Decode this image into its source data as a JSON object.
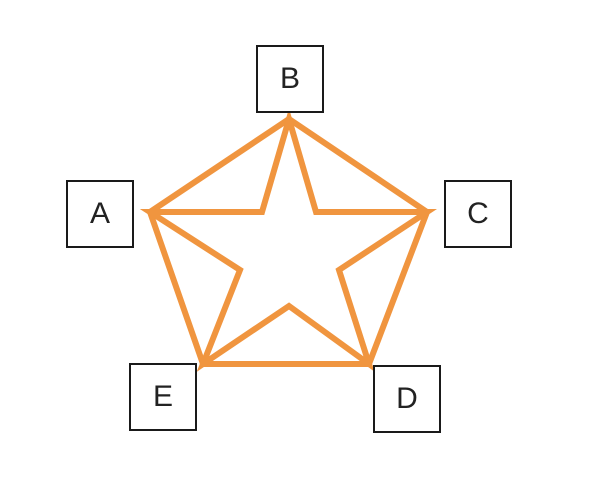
{
  "diagram": {
    "type": "pentagon-with-inscribed-star",
    "shape_color": "#f0953f",
    "nodes": {
      "a": {
        "label": "A"
      },
      "b": {
        "label": "B"
      },
      "c": {
        "label": "C"
      },
      "d": {
        "label": "D"
      },
      "e": {
        "label": "E"
      }
    },
    "pentagon_order": [
      "B",
      "C",
      "D",
      "E",
      "A"
    ],
    "star_vertices": [
      "B",
      "C",
      "D",
      "E",
      "A"
    ]
  }
}
